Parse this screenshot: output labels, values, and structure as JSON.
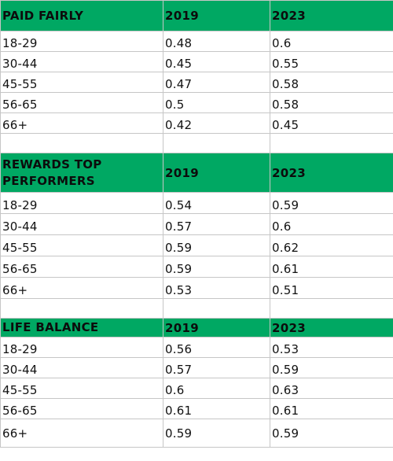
{
  "sections": [
    {
      "title": "PAID FAIRLY",
      "col1": "2019",
      "col2": "2023",
      "rows": [
        {
          "age": "18-29",
          "v2019": "0.48",
          "v2023": "0.6"
        },
        {
          "age": "30-44",
          "v2019": "0.45",
          "v2023": "0.55"
        },
        {
          "age": "45-55",
          "v2019": "0.47",
          "v2023": "0.58"
        },
        {
          "age": "56-65",
          "v2019": "0.5",
          "v2023": "0.58"
        },
        {
          "age": "66+",
          "v2019": "0.42",
          "v2023": "0.45"
        }
      ]
    },
    {
      "title": "REWARDS TOP PERFORMERS",
      "col1": "2019",
      "col2": "2023",
      "rows": [
        {
          "age": "18-29",
          "v2019": "0.54",
          "v2023": "0.59"
        },
        {
          "age": "30-44",
          "v2019": "0.57",
          "v2023": "0.6"
        },
        {
          "age": "45-55",
          "v2019": "0.59",
          "v2023": "0.62"
        },
        {
          "age": "56-65",
          "v2019": "0.59",
          "v2023": "0.61"
        },
        {
          "age": "66+",
          "v2019": "0.53",
          "v2023": "0.51"
        }
      ]
    },
    {
      "title": "LIFE BALANCE",
      "col1": "2019",
      "col2": "2023",
      "rows": [
        {
          "age": "18-29",
          "v2019": "0.56",
          "v2023": "0.53"
        },
        {
          "age": "30-44",
          "v2019": "0.57",
          "v2023": "0.59"
        },
        {
          "age": "45-55",
          "v2019": "0.6",
          "v2023": "0.63"
        },
        {
          "age": "56-65",
          "v2019": "0.61",
          "v2023": "0.61"
        },
        {
          "age": "66+",
          "v2019": "0.59",
          "v2023": "0.59"
        }
      ]
    }
  ],
  "colors": {
    "header_bg": "#00a863",
    "grid": "#c6c6c6"
  }
}
